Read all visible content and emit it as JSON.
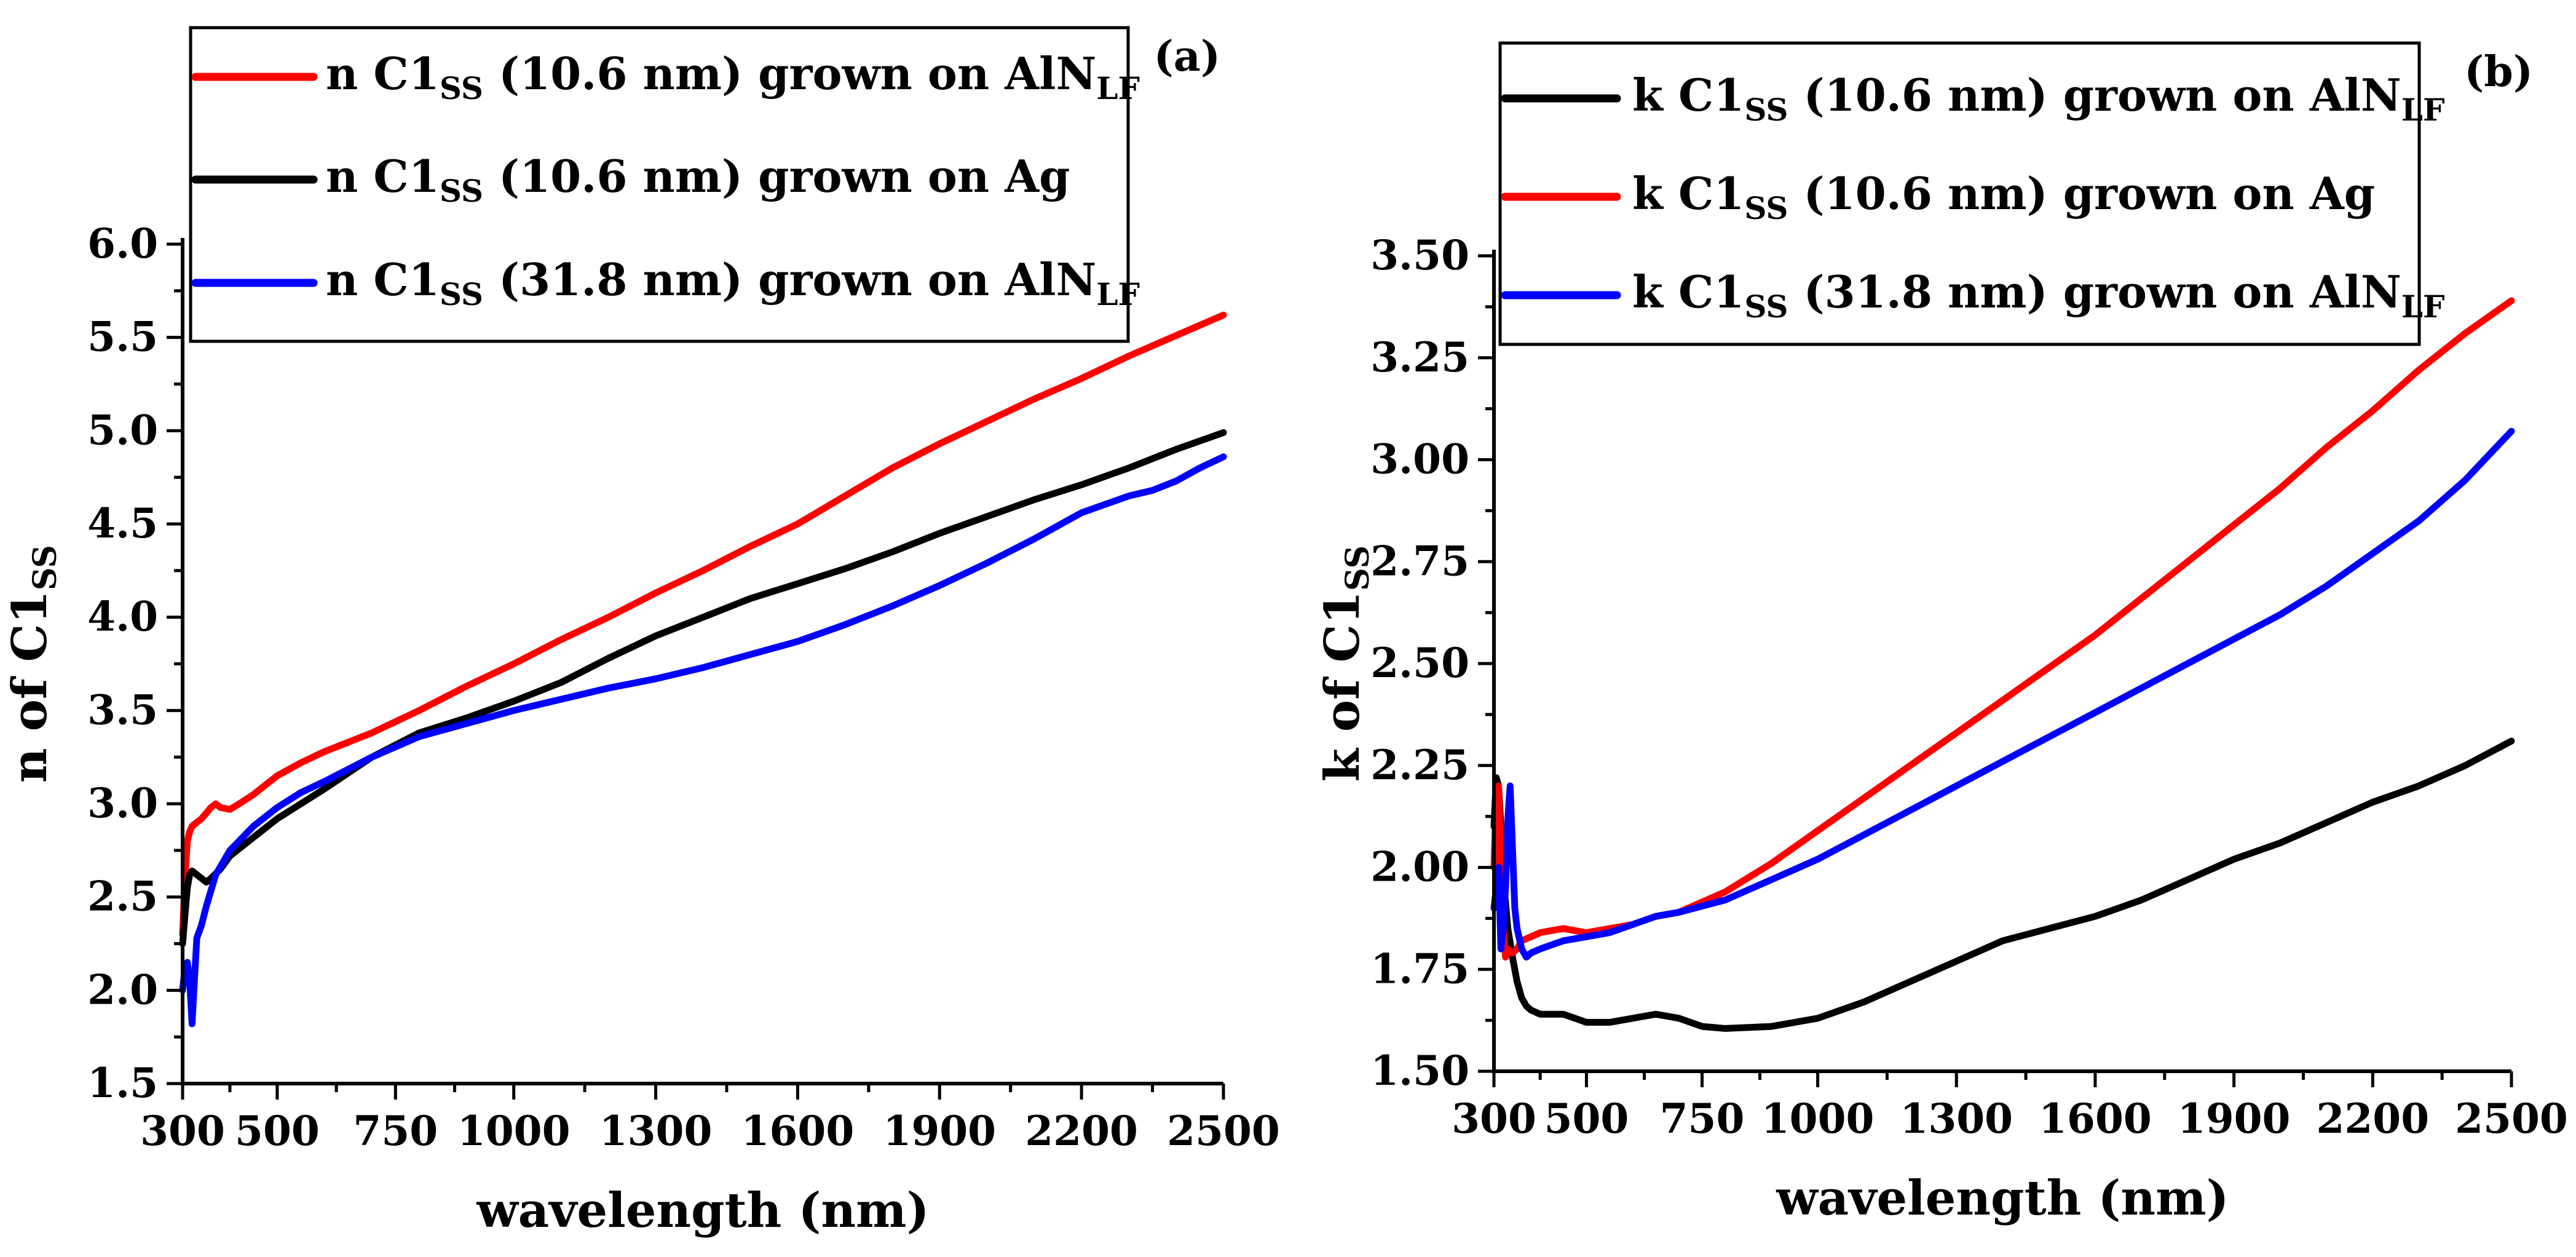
{
  "chart_data": [
    {
      "type": "line",
      "panel_label": "(a)",
      "xlabel": "wavelength (nm)",
      "ylabel": {
        "main": "n of C1",
        "sub": "SS"
      },
      "xlim": [
        300,
        2500
      ],
      "ylim": [
        1.5,
        6.0
      ],
      "x_ticks": [
        300,
        500,
        750,
        1000,
        1300,
        1600,
        1900,
        2200,
        2500
      ],
      "x_tick_labels": [
        "300",
        "500",
        "750",
        "1000",
        "1300",
        "1600",
        "1900",
        "2200",
        "2500"
      ],
      "y_ticks": [
        1.5,
        2.0,
        2.5,
        3.0,
        3.5,
        4.0,
        4.5,
        5.0,
        5.5,
        6.0
      ],
      "y_tick_labels": [
        "1.5",
        "2.0",
        "2.5",
        "3.0",
        "3.5",
        "4.0",
        "4.5",
        "5.0",
        "5.5",
        "6.0"
      ],
      "legend_position": "top",
      "series": [
        {
          "name": "n C1SS (10.6 nm) grown on AlNLF",
          "label": {
            "a": "n C1",
            "b": "SS",
            "c": " (10.6 nm) grown on AlN",
            "d": "LF"
          },
          "color": "#ff0000",
          "x": [
            300,
            305,
            310,
            315,
            320,
            330,
            340,
            350,
            360,
            370,
            380,
            400,
            420,
            450,
            500,
            550,
            600,
            700,
            800,
            900,
            1000,
            1100,
            1200,
            1300,
            1400,
            1500,
            1600,
            1700,
            1800,
            1900,
            2000,
            2100,
            2200,
            2300,
            2400,
            2500
          ],
          "y": [
            2.3,
            2.6,
            2.8,
            2.85,
            2.88,
            2.9,
            2.92,
            2.95,
            2.98,
            3.0,
            2.98,
            2.97,
            3.0,
            3.05,
            3.15,
            3.22,
            3.28,
            3.38,
            3.5,
            3.63,
            3.75,
            3.88,
            4.0,
            4.13,
            4.25,
            4.38,
            4.5,
            4.65,
            4.8,
            4.93,
            5.05,
            5.17,
            5.28,
            5.4,
            5.51,
            5.62
          ]
        },
        {
          "name": "n C1SS (10.6 nm) grown on Ag",
          "label": {
            "a": "n C1",
            "b": "SS",
            "c": " (10.6 nm) grown on Ag",
            "d": ""
          },
          "color": "#000000",
          "x": [
            300,
            305,
            310,
            315,
            320,
            330,
            340,
            350,
            360,
            380,
            400,
            450,
            500,
            550,
            600,
            700,
            800,
            900,
            1000,
            1100,
            1200,
            1300,
            1400,
            1500,
            1600,
            1700,
            1800,
            1900,
            2000,
            2100,
            2200,
            2300,
            2400,
            2500
          ],
          "y": [
            2.25,
            2.4,
            2.55,
            2.62,
            2.64,
            2.62,
            2.6,
            2.58,
            2.6,
            2.65,
            2.72,
            2.82,
            2.92,
            3.0,
            3.08,
            3.25,
            3.38,
            3.46,
            3.55,
            3.65,
            3.78,
            3.9,
            4.0,
            4.1,
            4.18,
            4.26,
            4.35,
            4.45,
            4.54,
            4.63,
            4.71,
            4.8,
            4.9,
            4.99
          ]
        },
        {
          "name": "n C1SS (31.8 nm) grown on AlNLF",
          "label": {
            "a": "n C1",
            "b": "SS",
            "c": " (31.8 nm) grown on AlN",
            "d": "LF"
          },
          "color": "#0000ff",
          "x": [
            300,
            305,
            310,
            315,
            320,
            325,
            330,
            340,
            350,
            370,
            400,
            450,
            500,
            550,
            600,
            700,
            800,
            900,
            1000,
            1100,
            1200,
            1300,
            1400,
            1500,
            1600,
            1700,
            1800,
            1900,
            2000,
            2100,
            2200,
            2300,
            2350,
            2400,
            2450,
            2500
          ],
          "y": [
            2.0,
            2.12,
            2.15,
            2.05,
            1.82,
            2.05,
            2.28,
            2.35,
            2.45,
            2.62,
            2.75,
            2.88,
            2.98,
            3.06,
            3.12,
            3.25,
            3.36,
            3.43,
            3.5,
            3.56,
            3.62,
            3.67,
            3.73,
            3.8,
            3.87,
            3.96,
            4.06,
            4.17,
            4.29,
            4.42,
            4.56,
            4.65,
            4.68,
            4.73,
            4.8,
            4.86
          ]
        }
      ]
    },
    {
      "type": "line",
      "panel_label": "(b)",
      "xlabel": "wavelength (nm)",
      "ylabel": {
        "main": "k of C1",
        "sub": "SS"
      },
      "xlim": [
        300,
        2500
      ],
      "ylim": [
        1.5,
        3.5
      ],
      "x_ticks": [
        300,
        500,
        750,
        1000,
        1300,
        1600,
        1900,
        2200,
        2500
      ],
      "x_tick_labels": [
        "300",
        "500",
        "750",
        "1000",
        "1300",
        "1600",
        "1900",
        "2200",
        "2500"
      ],
      "y_ticks": [
        1.5,
        1.75,
        2.0,
        2.25,
        2.5,
        2.75,
        3.0,
        3.25,
        3.5
      ],
      "y_tick_labels": [
        "1.50",
        "1.75",
        "2.00",
        "2.25",
        "2.50",
        "2.75",
        "3.00",
        "3.25",
        "3.50"
      ],
      "legend_position": "top",
      "series": [
        {
          "name": "k C1SS (10.6 nm) grown on AlNLF",
          "label": {
            "a": "k C1",
            "b": "SS",
            "c": " (10.6 nm) grown on AlN",
            "d": "LF"
          },
          "color": "#000000",
          "x": [
            300,
            305,
            310,
            315,
            320,
            330,
            340,
            350,
            360,
            370,
            380,
            400,
            450,
            500,
            550,
            600,
            650,
            700,
            750,
            800,
            900,
            1000,
            1100,
            1200,
            1300,
            1400,
            1500,
            1600,
            1700,
            1800,
            1900,
            2000,
            2100,
            2200,
            2300,
            2400,
            2500
          ],
          "y": [
            2.1,
            2.22,
            2.2,
            2.1,
            1.98,
            1.85,
            1.78,
            1.72,
            1.68,
            1.66,
            1.65,
            1.64,
            1.64,
            1.62,
            1.62,
            1.63,
            1.64,
            1.63,
            1.61,
            1.605,
            1.61,
            1.63,
            1.67,
            1.72,
            1.77,
            1.82,
            1.85,
            1.88,
            1.92,
            1.97,
            2.02,
            2.06,
            2.11,
            2.16,
            2.2,
            2.25,
            2.31
          ]
        },
        {
          "name": "k C1SS (10.6 nm) grown on Ag",
          "label": {
            "a": "k C1",
            "b": "SS",
            "c": " (10.6 nm) grown on Ag",
            "d": ""
          },
          "color": "#ff0000",
          "x": [
            300,
            305,
            310,
            315,
            320,
            325,
            330,
            340,
            350,
            360,
            380,
            400,
            450,
            500,
            550,
            600,
            650,
            700,
            800,
            900,
            1000,
            1100,
            1200,
            1300,
            1400,
            1500,
            1600,
            1700,
            1800,
            1900,
            2000,
            2100,
            2200,
            2300,
            2400,
            2500
          ],
          "y": [
            2.0,
            2.18,
            2.2,
            2.0,
            1.85,
            1.78,
            1.8,
            1.79,
            1.8,
            1.82,
            1.83,
            1.84,
            1.85,
            1.84,
            1.85,
            1.86,
            1.88,
            1.89,
            1.94,
            2.01,
            2.09,
            2.17,
            2.25,
            2.33,
            2.41,
            2.49,
            2.57,
            2.66,
            2.75,
            2.84,
            2.93,
            3.03,
            3.12,
            3.22,
            3.31,
            3.39
          ]
        },
        {
          "name": "k C1SS (31.8 nm) grown on AlNLF",
          "label": {
            "a": "k C1",
            "b": "SS",
            "c": " (31.8 nm) grown on AlN",
            "d": "LF"
          },
          "color": "#0000ff",
          "x": [
            300,
            305,
            310,
            315,
            320,
            325,
            330,
            335,
            340,
            345,
            350,
            360,
            370,
            380,
            400,
            450,
            500,
            550,
            600,
            650,
            700,
            800,
            900,
            1000,
            1100,
            1200,
            1300,
            1400,
            1500,
            1600,
            1700,
            1800,
            1900,
            2000,
            2100,
            2200,
            2300,
            2400,
            2500
          ],
          "y": [
            1.9,
            1.95,
            2.0,
            1.8,
            1.85,
            1.95,
            2.12,
            2.2,
            2.05,
            1.9,
            1.85,
            1.8,
            1.78,
            1.79,
            1.8,
            1.82,
            1.83,
            1.84,
            1.86,
            1.88,
            1.89,
            1.92,
            1.97,
            2.02,
            2.08,
            2.14,
            2.2,
            2.26,
            2.32,
            2.38,
            2.44,
            2.5,
            2.56,
            2.62,
            2.69,
            2.77,
            2.85,
            2.95,
            3.07
          ]
        }
      ]
    }
  ]
}
